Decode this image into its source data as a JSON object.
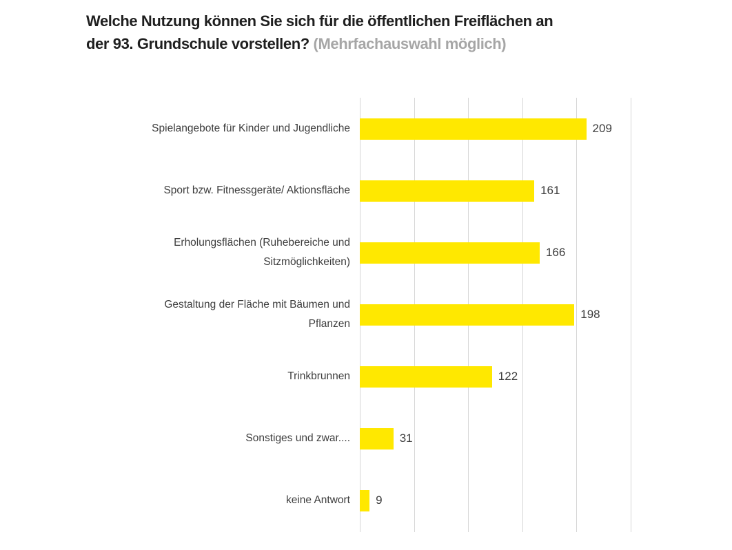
{
  "colors": {
    "bar": "#FFE800",
    "gridline": "#D6D6D6",
    "label": "#3D3D3D",
    "value": "#3D3D3D",
    "title_main": "#1F1F1F",
    "title_note": "#A6A6A6"
  },
  "chart_data": {
    "type": "bar",
    "orientation": "horizontal",
    "title": {
      "line1": "Welche Nutzung können Sie sich für die öffentlichen Freiflächen an",
      "line2": "der 93. Grundschule vorstellen?",
      "note": "(Mehrfachauswahl möglich)"
    },
    "categories": [
      "Spielangebote für Kinder und Jugendliche",
      "Sport bzw. Fitnessgeräte/ Aktionsfläche",
      "Erholungsflächen (Ruhebereiche und\nSitzmöglichkeiten)",
      "Gestaltung der Fläche mit Bäumen und\nPflanzen",
      "Trinkbrunnen",
      "Sonstiges und zwar....",
      "keine Antwort"
    ],
    "values": [
      209,
      161,
      166,
      198,
      122,
      31,
      9
    ],
    "data_labels_visible": true,
    "xlim": [
      0,
      250
    ],
    "ticks": [
      0,
      50,
      100,
      150,
      200,
      250
    ],
    "tick_labels_visible": false,
    "grid": "vertical",
    "legend": "none",
    "xlabel": "",
    "ylabel": ""
  }
}
